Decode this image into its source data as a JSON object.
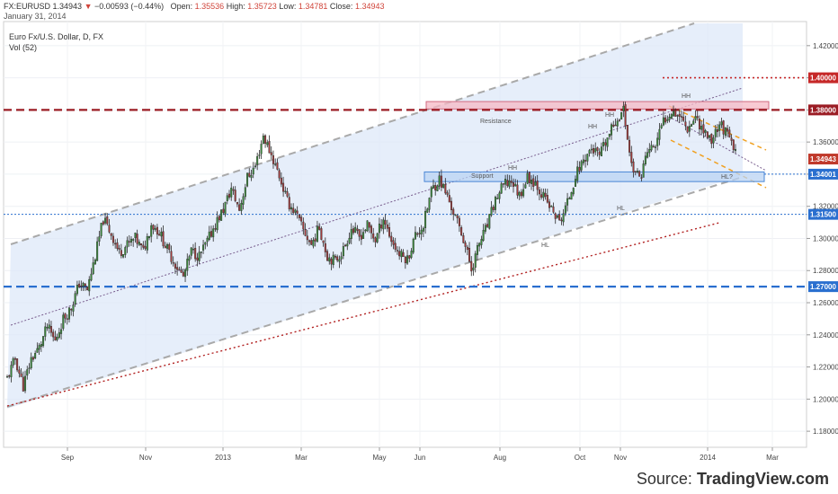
{
  "header": {
    "symbol": "FX:EURUSD",
    "last": "1.34943",
    "change_icon": "down-triangle-icon",
    "change": "−0.00593 (−0.44%)",
    "open_label": "Open:",
    "open": "1.35536",
    "high_label": "High:",
    "high": "1.35723",
    "low_label": "Low:",
    "low": "1.34781",
    "close_label": "Close:",
    "close": "1.34943",
    "date": "January 31, 2014"
  },
  "legend": {
    "title": "Euro Fx/U.S. Dollar, D, FX",
    "volume": "Vol (52)"
  },
  "source": {
    "prefix": "Source:",
    "name": "TradingView.com"
  },
  "colors": {
    "up": "#3b8a3b",
    "down": "#a33a3a",
    "resistance_line": "#9b1c24",
    "support_line": "#2a6fcf",
    "channel": "#a9a9a9",
    "wedge": "#f0a020",
    "trend": "#b22222",
    "resistance_zone": "#f6b8c4",
    "support_zone": "#b9d3f3",
    "channel_fill": "#dde8f8"
  },
  "chart_data": {
    "type": "candlestick",
    "title": "Euro Fx/U.S. Dollar, D, FX",
    "ylim": [
      1.17,
      1.435
    ],
    "y_ticks": [
      1.18,
      1.2,
      1.22,
      1.24,
      1.26,
      1.28,
      1.3,
      1.32,
      1.34,
      1.36,
      1.38,
      1.4,
      1.42
    ],
    "y_tick_labels": [
      "1.18000",
      "1.20000",
      "1.22000",
      "1.24000",
      "1.26000",
      "1.28000",
      "1.30000",
      "1.32000",
      "1.34000",
      "1.36000",
      "1.38000",
      "1.40000",
      "1.42000"
    ],
    "x_tick_labels": [
      "Sep",
      "Nov",
      "2013",
      "Mar",
      "May",
      "Jun",
      "Aug",
      "Oct",
      "Nov",
      "2014",
      "Mar"
    ],
    "grid": true,
    "horizontal_levels": [
      {
        "value": 1.4,
        "label": "1.40000",
        "color": "#c62828",
        "style": "dotted"
      },
      {
        "value": 1.38,
        "label": "1.38000",
        "color": "#9b1c24",
        "style": "dashed"
      },
      {
        "value": 1.34943,
        "label": "1.34943",
        "color": "#c0392b",
        "style": "none"
      },
      {
        "value": 1.34001,
        "label": "1.34001",
        "color": "#2a6fcf",
        "style": "dotted"
      },
      {
        "value": 1.315,
        "label": "1.31500",
        "color": "#2a6fcf",
        "style": "dotted"
      },
      {
        "value": 1.27,
        "label": "1.27000",
        "color": "#2a6fcf",
        "style": "dashed"
      }
    ],
    "zones": [
      {
        "label": "Resistance",
        "from": 1.3806,
        "to": 1.3852
      },
      {
        "label": "Support",
        "from": 1.3354,
        "to": 1.3414
      }
    ],
    "annotations": [
      "HH",
      "HH",
      "HH",
      "HH",
      "HL",
      "HL",
      "HL?"
    ],
    "ohlc_path_close": [
      1.213,
      1.225,
      1.208,
      1.225,
      1.232,
      1.245,
      1.236,
      1.25,
      1.257,
      1.272,
      1.268,
      1.289,
      1.312,
      1.303,
      1.291,
      1.296,
      1.3,
      1.292,
      1.309,
      1.304,
      1.293,
      1.284,
      1.276,
      1.292,
      1.289,
      1.298,
      1.309,
      1.318,
      1.331,
      1.318,
      1.338,
      1.345,
      1.364,
      1.352,
      1.339,
      1.323,
      1.316,
      1.305,
      1.296,
      1.307,
      1.289,
      1.286,
      1.293,
      1.306,
      1.301,
      1.308,
      1.299,
      1.313,
      1.299,
      1.29,
      1.287,
      1.302,
      1.308,
      1.33,
      1.337,
      1.326,
      1.313,
      1.3,
      1.281,
      1.297,
      1.308,
      1.324,
      1.333,
      1.336,
      1.327,
      1.338,
      1.335,
      1.326,
      1.318,
      1.31,
      1.322,
      1.339,
      1.349,
      1.356,
      1.351,
      1.362,
      1.373,
      1.38,
      1.346,
      1.337,
      1.354,
      1.358,
      1.373,
      1.38,
      1.377,
      1.369,
      1.376,
      1.367,
      1.361,
      1.372,
      1.364,
      1.353
    ]
  }
}
